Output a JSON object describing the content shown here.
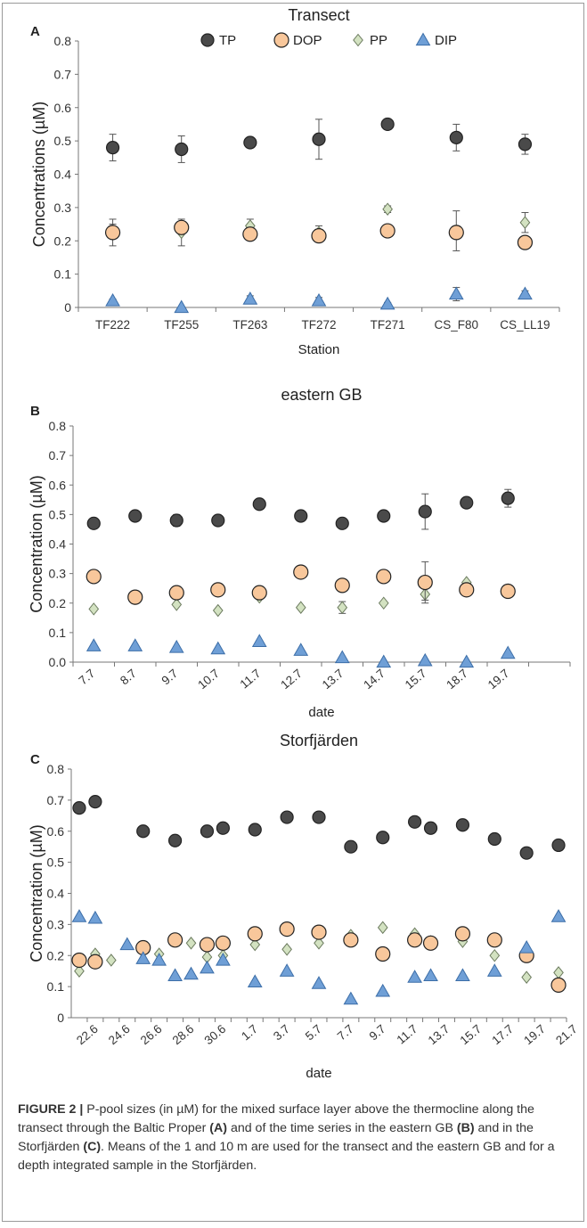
{
  "colors": {
    "TP": "#4a4a4a",
    "DOP": "#f8c79b",
    "PP": "#d3e2c1",
    "DIP": "#6f9fd6",
    "marker_edge": "#222222",
    "tick_text": "#333333"
  },
  "legend": {
    "items": [
      {
        "label": "TP",
        "shape": "circle",
        "color": "#4a4a4a"
      },
      {
        "label": "DOP",
        "shape": "circle",
        "color": "#f8c79b"
      },
      {
        "label": "PP",
        "shape": "diamond",
        "color": "#d3e2c1"
      },
      {
        "label": "DIP",
        "shape": "triangle",
        "color": "#6f9fd6"
      }
    ]
  },
  "caption": {
    "figure_label": "FIGURE 2 |",
    "part1": " P-pool sizes (in µM) for the mixed surface layer above the thermocline along the transect through the Baltic Proper ",
    "refA": "(A)",
    "part2": " and of the time series in the eastern GB ",
    "refB": "(B)",
    "part3": " and in the Storfjärden ",
    "refC": "(C)",
    "part4": ". Means of the 1 and 10 m are used for the transect and the eastern GB and for a depth integrated sample in the Storfjärden."
  },
  "chart_data": [
    {
      "panel": "A",
      "type": "scatter",
      "title": "Transect",
      "xlabel": "Station",
      "ylabel": "Concentrations (µM)",
      "ylim": [
        0,
        0.8
      ],
      "yticks": [
        "0",
        "0.1",
        "0.2",
        "0.3",
        "0.4",
        "0.5",
        "0.6",
        "0.7",
        "0.8"
      ],
      "categories": [
        "TF222",
        "TF255",
        "TF263",
        "TF272",
        "TF271",
        "CS_F80",
        "CS_LL19"
      ],
      "legend_position": "top",
      "series": [
        {
          "name": "TP",
          "values": [
            0.48,
            0.475,
            0.495,
            0.505,
            0.55,
            0.51,
            0.49
          ],
          "error": [
            0.04,
            0.04,
            0.01,
            0.06,
            0.01,
            0.04,
            0.03
          ]
        },
        {
          "name": "DOP",
          "values": [
            0.225,
            0.24,
            0.22,
            0.215,
            0.23,
            0.225,
            0.195
          ],
          "error": [
            0.04,
            0.01,
            0.01,
            0.01,
            0.01,
            0.01,
            0.01
          ]
        },
        {
          "name": "PP",
          "values": [
            0.23,
            0.225,
            0.245,
            0.225,
            0.295,
            0.23,
            0.255
          ],
          "error": [
            0.02,
            0.04,
            0.02,
            0.02,
            0.01,
            0.06,
            0.03
          ]
        },
        {
          "name": "DIP",
          "values": [
            0.02,
            0.0,
            0.025,
            0.02,
            0.01,
            0.04,
            0.04
          ],
          "error": [
            0.005,
            0.0,
            0.01,
            0.01,
            0.005,
            0.02,
            0.01
          ]
        }
      ]
    },
    {
      "panel": "B",
      "type": "scatter",
      "title": "eastern GB",
      "xlabel": "date",
      "ylabel": "Concentration (µM)",
      "ylim": [
        0,
        0.8
      ],
      "yticks": [
        "0.0",
        "0.1",
        "0.2",
        "0.3",
        "0.4",
        "0.5",
        "0.6",
        "0.7",
        "0.8"
      ],
      "categories": [
        "7.7",
        "8.7",
        "9.7",
        "10.7",
        "11.7",
        "12.7",
        "13.7",
        "14.7",
        "15.7",
        "18.7",
        "19.7"
      ],
      "series": [
        {
          "name": "TP",
          "values": [
            0.47,
            0.495,
            0.48,
            0.48,
            0.535,
            0.495,
            0.47,
            0.495,
            0.51,
            0.54,
            0.555
          ],
          "error": [
            0.0,
            0.0,
            0.02,
            0.0,
            0.0,
            0.0,
            0.0,
            0.0,
            0.06,
            0.0,
            0.03
          ]
        },
        {
          "name": "DOP",
          "values": [
            0.29,
            0.22,
            0.235,
            0.245,
            0.235,
            0.305,
            0.26,
            0.29,
            0.27,
            0.245,
            0.24
          ],
          "error": [
            0.0,
            0.0,
            0.0,
            0.0,
            0.0,
            0.0,
            0.0,
            0.0,
            0.07,
            0.0,
            0.0
          ]
        },
        {
          "name": "PP",
          "values": [
            0.18,
            0.215,
            0.195,
            0.175,
            0.22,
            0.185,
            0.185,
            0.2,
            0.23,
            0.27,
            0.245
          ],
          "error": [
            0.0,
            0.0,
            0.0,
            0.0,
            0.0,
            0.0,
            0.02,
            0.0,
            0.02,
            0.0,
            0.0
          ]
        },
        {
          "name": "DIP",
          "values": [
            0.055,
            0.055,
            0.05,
            0.045,
            0.07,
            0.04,
            0.015,
            0.0,
            0.005,
            0.0,
            0.03
          ],
          "error": [
            0,
            0,
            0,
            0,
            0,
            0,
            0,
            0,
            0,
            0,
            0
          ]
        }
      ]
    },
    {
      "panel": "C",
      "type": "scatter",
      "title": "Storfjärden",
      "xlabel": "date",
      "ylabel": "Concentration (µM)",
      "ylim": [
        0,
        0.8
      ],
      "yticks": [
        "0",
        "0.1",
        "0.2",
        "0.3",
        "0.4",
        "0.5",
        "0.6",
        "0.7",
        "0.8"
      ],
      "tick_labels": [
        "22.6",
        "24.6",
        "26.6",
        "28.6",
        "30.6",
        "1.7",
        "3.7",
        "5.7",
        "7.7",
        "9.7",
        "11.7",
        "13.7",
        "15.7",
        "17.7",
        "19.7",
        "21.7"
      ],
      "x_days": [
        21,
        22,
        23,
        24,
        25,
        26,
        27,
        28,
        29,
        30,
        31,
        32,
        33,
        34,
        35,
        36,
        37,
        38,
        39,
        40,
        41,
        42,
        43,
        44,
        45,
        46,
        47,
        48,
        49,
        50,
        51
      ],
      "x_range": [
        20.5,
        51.5
      ],
      "series": [
        {
          "name": "TP",
          "x": [
            21,
            22,
            25,
            27,
            29,
            30,
            32,
            34,
            36,
            38,
            40,
            42,
            43,
            45,
            47,
            49,
            51
          ],
          "values": [
            0.675,
            0.695,
            0.6,
            0.57,
            0.6,
            0.61,
            0.605,
            0.645,
            0.645,
            0.55,
            0.58,
            0.63,
            0.61,
            0.62,
            0.575,
            0.53,
            0.555
          ]
        },
        {
          "name": "DOP",
          "x": [
            21,
            22,
            25,
            27,
            29,
            30,
            32,
            34,
            36,
            38,
            40,
            42,
            43,
            45,
            47,
            49,
            51
          ],
          "values": [
            0.185,
            0.18,
            0.225,
            0.25,
            0.235,
            0.24,
            0.27,
            0.285,
            0.275,
            0.25,
            0.205,
            0.25,
            0.24,
            0.27,
            0.25,
            0.2,
            0.105
          ]
        },
        {
          "name": "PP",
          "x": [
            21,
            22,
            23,
            26,
            28,
            29,
            30,
            32,
            34,
            36,
            38,
            40,
            42,
            43,
            45,
            47,
            49,
            51
          ],
          "values": [
            0.15,
            0.205,
            0.185,
            0.205,
            0.24,
            0.195,
            0.2,
            0.235,
            0.22,
            0.24,
            0.265,
            0.29,
            0.27,
            0.245,
            0.245,
            0.2,
            0.13,
            0.145
          ]
        },
        {
          "name": "DIP",
          "x": [
            21,
            22,
            24,
            25,
            26,
            27,
            28,
            29,
            30,
            32,
            34,
            36,
            38,
            40,
            42,
            43,
            45,
            47,
            49,
            51
          ],
          "values": [
            0.325,
            0.32,
            0.235,
            0.19,
            0.185,
            0.135,
            0.14,
            0.16,
            0.185,
            0.115,
            0.15,
            0.11,
            0.06,
            0.085,
            0.13,
            0.135,
            0.135,
            0.15,
            0.225,
            0.325
          ]
        }
      ]
    }
  ]
}
